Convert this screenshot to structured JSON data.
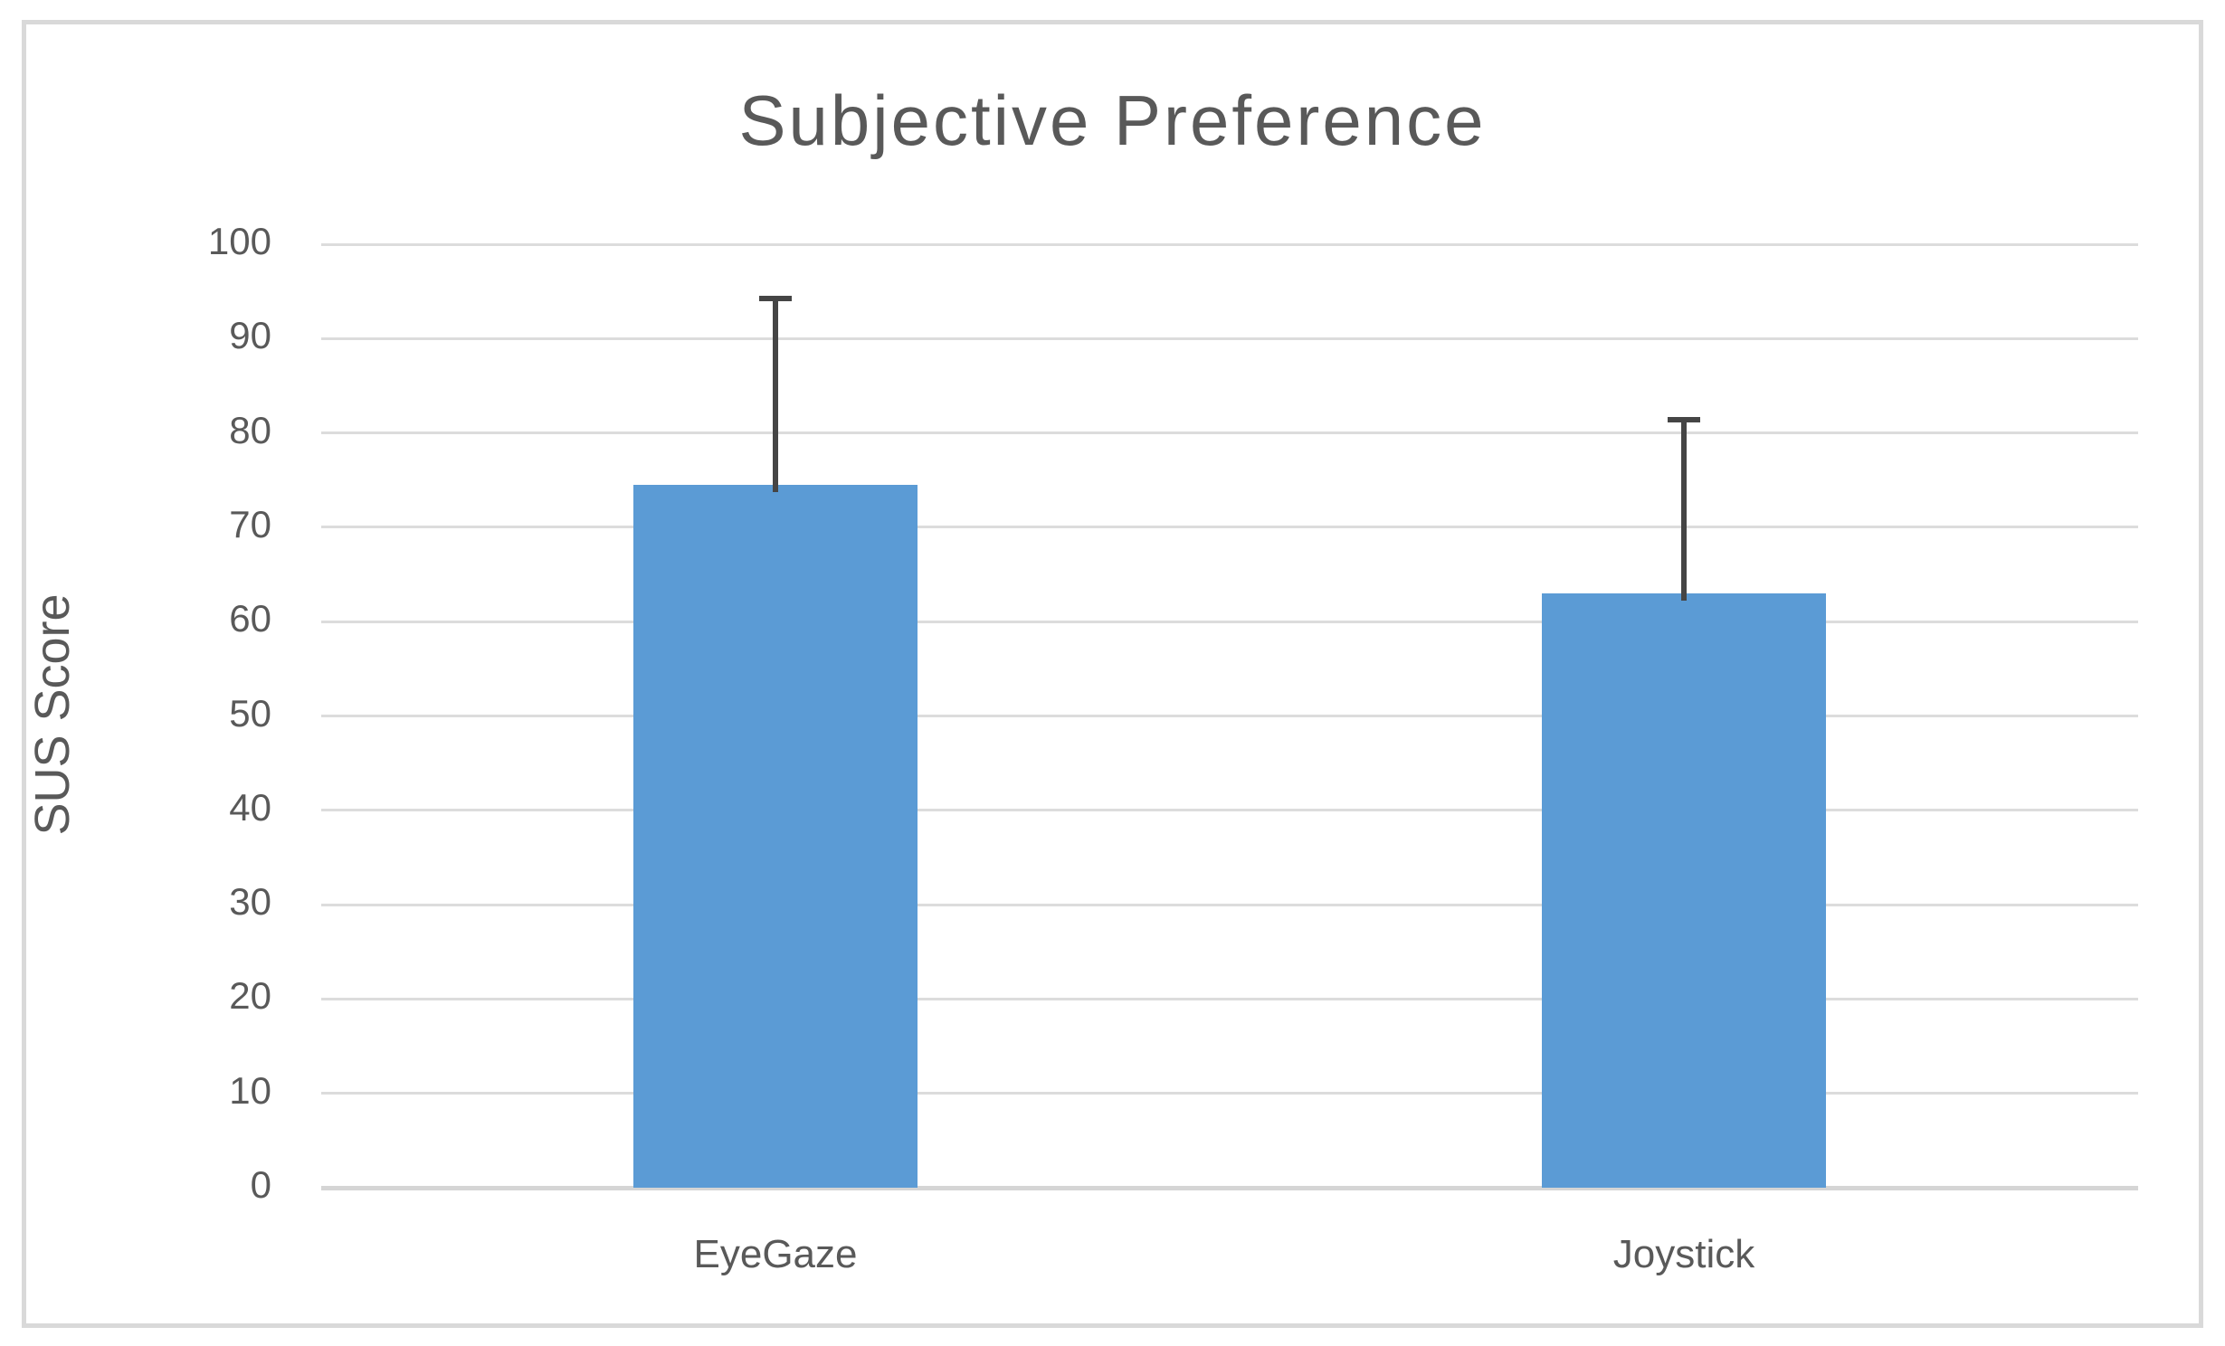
{
  "chart_data": {
    "type": "bar",
    "title": "Subjective Preference",
    "xlabel": "",
    "ylabel": "SUS Score",
    "categories": [
      "EyeGaze",
      "Joystick"
    ],
    "values": [
      74.5,
      63
    ],
    "error_plus": [
      19.8,
      18.5
    ],
    "error_tops": [
      94.3,
      81.5
    ],
    "ylim": [
      0,
      100
    ],
    "yticks": [
      0,
      10,
      20,
      30,
      40,
      50,
      60,
      70,
      80,
      90,
      100
    ],
    "grid": true,
    "legend": "none",
    "colors": {
      "bar": "#5B9BD5",
      "error_bar": "#454545",
      "gridline": "#DCDCDC",
      "axis_line": "#D5D5D5",
      "text": "#595959",
      "frame_border": "#D9D9D9",
      "background": "#FFFFFF"
    }
  }
}
